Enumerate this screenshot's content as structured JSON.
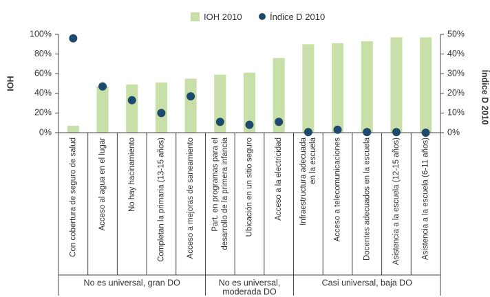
{
  "chart_data": {
    "type": "bar+scatter",
    "legend": {
      "position": "top",
      "bar_label": "IOH 2010",
      "dot_label": "Índice D 2010"
    },
    "y_left_label": "IOH",
    "y_right_label": "Índice D 2010",
    "y_left_ticks": [
      "0%",
      "20%",
      "40%",
      "60%",
      "80%",
      "100%"
    ],
    "y_right_ticks": [
      "0%",
      "10%",
      "20%",
      "30%",
      "40%",
      "50%"
    ],
    "y_left_range": [
      0,
      100
    ],
    "y_right_range": [
      0,
      50
    ],
    "categories": [
      "Con cobertura de seguro de salud",
      "Acceso al agua en el lugar",
      "No hay hacinamiento",
      "Completan la primaria (13-15 años)",
      "Acceso a mejoras de saneamiento",
      [
        "Part. en programas para el",
        "desarrollo de la primera infancia"
      ],
      "Ubicación en un sitio seguro",
      "Acceso a la electricidad",
      [
        "Infraestructura adecuada",
        "en la escuela"
      ],
      "Acceso a telecomunicaciones",
      "Docentes adecuados en la escuela",
      "Asistencia a la escuela (12-15 años)",
      "Asistencia a la escuela (6-11 años)"
    ],
    "series": [
      {
        "name": "IOH 2010",
        "kind": "bar",
        "axis": "left",
        "color": "#c8e0a8",
        "values": [
          7,
          47,
          49,
          51,
          55,
          59,
          61,
          76,
          90,
          91,
          93,
          97,
          97
        ]
      },
      {
        "name": "Índice D 2010",
        "kind": "dot",
        "axis": "right",
        "color": "#1f4a6e",
        "values": [
          48,
          23.5,
          16.5,
          10,
          18.5,
          5.5,
          4,
          5.5,
          0.3,
          1.5,
          0.3,
          0.3,
          0
        ]
      }
    ],
    "groups": [
      {
        "label": [
          "No es universal, gran DO"
        ],
        "count": 5
      },
      {
        "label": [
          "No es universal,",
          "moderada DO"
        ],
        "count": 3
      },
      {
        "label": [
          "Casi universal, baja DO"
        ],
        "count": 5
      }
    ]
  }
}
